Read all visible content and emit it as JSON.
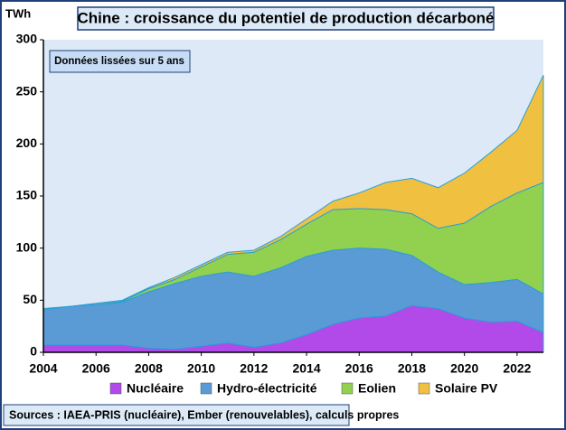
{
  "chart_data": {
    "type": "stacked-area",
    "title": "Chine : croissance du potentiel de production décarboné",
    "y_label": "TWh",
    "annotation": "Données lissées sur 5 ans",
    "source": "Sources : IAEA-PRIS (nucléaire), Ember (renouvelables), calculs propres",
    "x": [
      2004,
      2005,
      2006,
      2007,
      2008,
      2009,
      2010,
      2011,
      2012,
      2013,
      2014,
      2015,
      2016,
      2017,
      2018,
      2019,
      2020,
      2021,
      2022,
      2023
    ],
    "xlim": [
      2004,
      2023
    ],
    "xticks": [
      2004,
      2006,
      2008,
      2010,
      2012,
      2014,
      2016,
      2018,
      2020,
      2022
    ],
    "ylim": [
      0,
      300
    ],
    "yticks": [
      0,
      50,
      100,
      150,
      200,
      250,
      300
    ],
    "series": [
      {
        "name": "Nucléaire",
        "color": "#b14ae8",
        "values": [
          7,
          7,
          7,
          7,
          4,
          3,
          6,
          9,
          5,
          9,
          17,
          27,
          33,
          35,
          45,
          42,
          33,
          29,
          30,
          19
        ]
      },
      {
        "name": "Hydro-électricité",
        "color": "#5b9bd5",
        "values": [
          34,
          37,
          39,
          41,
          54,
          63,
          67,
          68,
          68,
          72,
          75,
          71,
          67,
          64,
          48,
          35,
          32,
          38,
          40,
          37
        ]
      },
      {
        "name": "Eolien",
        "color": "#92d050",
        "values": [
          0,
          0,
          0,
          1,
          3,
          4,
          9,
          17,
          23,
          27,
          31,
          39,
          38,
          38,
          40,
          42,
          59,
          73,
          83,
          107
        ]
      },
      {
        "name": "Solaire PV",
        "color": "#f0c040",
        "values": [
          1,
          0,
          1,
          1,
          1,
          2,
          2,
          2,
          2,
          3,
          5,
          8,
          15,
          26,
          34,
          39,
          48,
          52,
          60,
          103
        ]
      }
    ]
  }
}
